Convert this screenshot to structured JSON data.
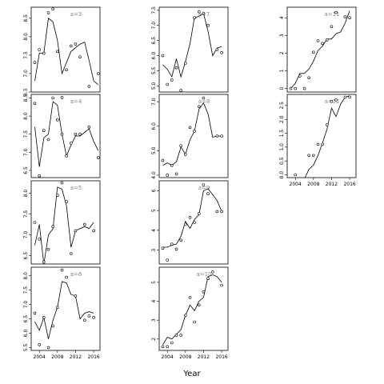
{
  "figure": {
    "xlabel": "Year"
  },
  "chart_data": {
    "type": "line",
    "xlabel": "Year",
    "xticks": [
      2004,
      2008,
      2012,
      2016
    ],
    "panels": [
      {
        "title": "a=3",
        "ylim": [
          6.5,
          8.8
        ],
        "yticks": [
          "6.5",
          "7.0",
          "7.5",
          "8.0",
          "8.5"
        ],
        "points_x": [
          2003,
          2004,
          2005,
          2006,
          2007,
          2008,
          2009,
          2010,
          2011,
          2012,
          2013,
          2015,
          2017
        ],
        "points_y": [
          7.3,
          7.65,
          7.55,
          8.65,
          8.75,
          7.6,
          6.35,
          7.1,
          7.75,
          7.8,
          7.45,
          6.65,
          7.0
        ],
        "line_x": [
          2003,
          2004,
          2005,
          2006,
          2007,
          2008,
          2009,
          2010,
          2011,
          2012,
          2013,
          2014,
          2015,
          2016,
          2017
        ],
        "line_y": [
          6.8,
          7.55,
          7.55,
          8.5,
          8.4,
          7.9,
          7.0,
          7.3,
          7.6,
          7.7,
          7.8,
          7.85,
          7.35,
          6.8,
          6.7
        ]
      },
      {
        "title": "a=7",
        "ylim": [
          4.8,
          7.6
        ],
        "yticks": [
          "5.0",
          "5.5",
          "6.0",
          "6.5",
          "7.0",
          "7.5"
        ],
        "points_x": [
          2003,
          2004,
          2005,
          2006,
          2007,
          2008,
          2010,
          2011,
          2012,
          2013,
          2015,
          2016
        ],
        "points_y": [
          6.0,
          5.05,
          5.2,
          5.6,
          4.85,
          5.75,
          7.25,
          7.45,
          7.4,
          7.0,
          6.2,
          6.1
        ],
        "line_x": [
          2003,
          2004,
          2005,
          2006,
          2007,
          2008,
          2009,
          2010,
          2011,
          2012,
          2013,
          2014,
          2015,
          2016
        ],
        "line_y": [
          5.7,
          5.55,
          5.3,
          5.9,
          5.3,
          5.8,
          6.4,
          7.25,
          7.3,
          7.4,
          6.8,
          6.0,
          6.25,
          6.3
        ]
      },
      {
        "title": "a=11",
        "ylim": [
          -0.2,
          4.6
        ],
        "yticks": [
          "0",
          "1",
          "2",
          "3",
          "4"
        ],
        "points_x": [
          2003,
          2004,
          2005,
          2006,
          2007,
          2008,
          2009,
          2010,
          2011,
          2012,
          2013,
          2015,
          2016
        ],
        "points_y": [
          0.0,
          0.0,
          0.7,
          0.0,
          0.6,
          2.05,
          2.7,
          2.55,
          2.75,
          3.5,
          4.3,
          4.05,
          4.0
        ],
        "line_x": [
          2003,
          2004,
          2005,
          2006,
          2007,
          2008,
          2009,
          2010,
          2011,
          2012,
          2013,
          2014,
          2015,
          2016
        ],
        "line_y": [
          0.0,
          0.3,
          0.85,
          0.85,
          1.1,
          1.55,
          2.15,
          2.4,
          2.8,
          2.8,
          3.1,
          3.2,
          3.7,
          4.4
        ]
      },
      {
        "title": "a=4",
        "ylim": [
          6.3,
          8.6
        ],
        "yticks": [
          "6.5",
          "7.0",
          "7.5",
          "8.0",
          "8.5"
        ],
        "points_x": [
          2003,
          2004,
          2005,
          2006,
          2007,
          2008,
          2009,
          2010,
          2011,
          2012,
          2013,
          2015,
          2017
        ],
        "points_y": [
          8.35,
          6.35,
          7.6,
          7.35,
          8.5,
          7.9,
          7.5,
          6.9,
          7.25,
          7.5,
          7.5,
          7.7,
          6.85
        ],
        "line_x": [
          2003,
          2004,
          2005,
          2006,
          2007,
          2008,
          2009,
          2010,
          2011,
          2012,
          2013,
          2014,
          2015,
          2016,
          2017
        ],
        "line_y": [
          7.7,
          6.6,
          7.4,
          7.5,
          8.4,
          8.3,
          7.5,
          6.9,
          7.2,
          7.45,
          7.45,
          7.55,
          7.65,
          7.3,
          7.05
        ]
      },
      {
        "title": "a=8",
        "ylim": [
          3.9,
          7.3
        ],
        "yticks": [
          "4.0",
          "5.0",
          "6.0",
          "7.0"
        ],
        "points_x": [
          2003,
          2004,
          2005,
          2006,
          2007,
          2008,
          2009,
          2010,
          2011,
          2012,
          2015,
          2016
        ],
        "points_y": [
          4.6,
          4.0,
          4.4,
          4.05,
          5.2,
          4.85,
          5.95,
          5.8,
          6.8,
          7.15,
          5.6,
          5.6
        ],
        "line_x": [
          2003,
          2004,
          2005,
          2006,
          2007,
          2008,
          2009,
          2010,
          2011,
          2012,
          2013,
          2014,
          2015,
          2016
        ],
        "line_y": [
          4.4,
          4.5,
          4.4,
          4.55,
          5.15,
          4.85,
          5.45,
          5.8,
          6.7,
          6.95,
          6.5,
          5.55,
          5.6,
          5.6
        ]
      },
      {
        "title": "a=12",
        "ylim": [
          -0.1,
          2.9
        ],
        "yticks": [
          "0.0",
          "0.5",
          "1.0",
          "1.5",
          "2.0",
          "2.5"
        ],
        "points_x": [
          2004,
          2007,
          2008,
          2009,
          2010,
          2011,
          2012,
          2013,
          2015,
          2016
        ],
        "points_y": [
          0.0,
          0.7,
          0.7,
          1.1,
          1.1,
          1.8,
          2.65,
          2.7,
          2.8,
          2.8
        ],
        "line_x": [
          2006,
          2007,
          2008,
          2009,
          2010,
          2011,
          2012,
          2013,
          2014,
          2015,
          2016
        ],
        "line_y": [
          -0.15,
          0.2,
          0.35,
          0.7,
          1.15,
          1.65,
          2.4,
          2.1,
          2.55,
          2.8,
          2.85
        ]
      },
      {
        "title": "a=5",
        "ylim": [
          6.3,
          8.3
        ],
        "yticks": [
          "6.5",
          "7.0",
          "7.5",
          "8.0"
        ],
        "points_x": [
          2003,
          2004,
          2005,
          2006,
          2007,
          2008,
          2009,
          2010,
          2011,
          2012,
          2014,
          2016
        ],
        "points_y": [
          7.3,
          6.9,
          6.35,
          6.65,
          7.2,
          7.95,
          8.25,
          7.8,
          6.55,
          7.1,
          7.25,
          7.1
        ],
        "line_x": [
          2003,
          2004,
          2005,
          2006,
          2007,
          2008,
          2009,
          2010,
          2011,
          2012,
          2013,
          2014,
          2015,
          2016
        ],
        "line_y": [
          6.75,
          7.25,
          6.3,
          7.0,
          7.15,
          8.15,
          8.1,
          7.7,
          6.7,
          7.1,
          7.15,
          7.2,
          7.15,
          7.3
        ]
      },
      {
        "title": "a=9",
        "ylim": [
          2.3,
          6.5
        ],
        "yticks": [
          "3",
          "4",
          "5",
          "6"
        ],
        "points_x": [
          2003,
          2004,
          2005,
          2006,
          2007,
          2008,
          2009,
          2010,
          2011,
          2012,
          2013,
          2015,
          2016
        ],
        "points_y": [
          3.1,
          2.5,
          3.3,
          3.05,
          3.5,
          4.3,
          4.65,
          4.4,
          4.85,
          6.3,
          5.85,
          4.95,
          4.95
        ],
        "line_x": [
          2003,
          2004,
          2005,
          2006,
          2007,
          2008,
          2009,
          2010,
          2011,
          2012,
          2013,
          2014,
          2015,
          2016
        ],
        "line_y": [
          3.15,
          3.15,
          3.25,
          3.3,
          3.7,
          4.45,
          4.1,
          4.55,
          4.8,
          6.0,
          6.1,
          5.8,
          5.5,
          4.95
        ]
      },
      {
        "title": "a=6",
        "ylim": [
          5.4,
          8.3
        ],
        "yticks": [
          "5.5",
          "6.0",
          "6.5",
          "7.0",
          "7.5",
          "8.0"
        ],
        "points_x": [
          2003,
          2004,
          2005,
          2006,
          2007,
          2008,
          2009,
          2010,
          2012,
          2014,
          2015,
          2016
        ],
        "points_y": [
          6.7,
          5.6,
          6.55,
          5.5,
          6.25,
          6.9,
          8.2,
          7.95,
          7.3,
          6.45,
          6.6,
          6.55
        ],
        "line_x": [
          2003,
          2004,
          2005,
          2006,
          2007,
          2008,
          2009,
          2010,
          2011,
          2012,
          2013,
          2014,
          2015,
          2016
        ],
        "line_y": [
          6.4,
          6.1,
          6.55,
          5.8,
          6.45,
          6.9,
          7.8,
          7.75,
          7.35,
          7.3,
          6.5,
          6.7,
          6.75,
          6.7
        ]
      },
      {
        "title": "a=10",
        "ylim": [
          1.4,
          5.8
        ],
        "yticks": [
          "2",
          "3",
          "4",
          "5"
        ],
        "points_x": [
          2003,
          2004,
          2005,
          2006,
          2007,
          2008,
          2009,
          2010,
          2011,
          2012,
          2013,
          2014,
          2016
        ],
        "points_y": [
          1.6,
          1.6,
          1.8,
          2.2,
          2.2,
          3.25,
          4.2,
          2.9,
          3.8,
          4.5,
          5.2,
          5.55,
          4.85
        ],
        "line_x": [
          2003,
          2004,
          2005,
          2006,
          2007,
          2008,
          2009,
          2010,
          2011,
          2012,
          2013,
          2014,
          2015,
          2016
        ],
        "line_y": [
          1.7,
          2.1,
          2.0,
          2.25,
          2.5,
          3.25,
          3.8,
          3.5,
          4.0,
          4.2,
          5.3,
          5.4,
          5.3,
          5.0
        ]
      }
    ]
  }
}
